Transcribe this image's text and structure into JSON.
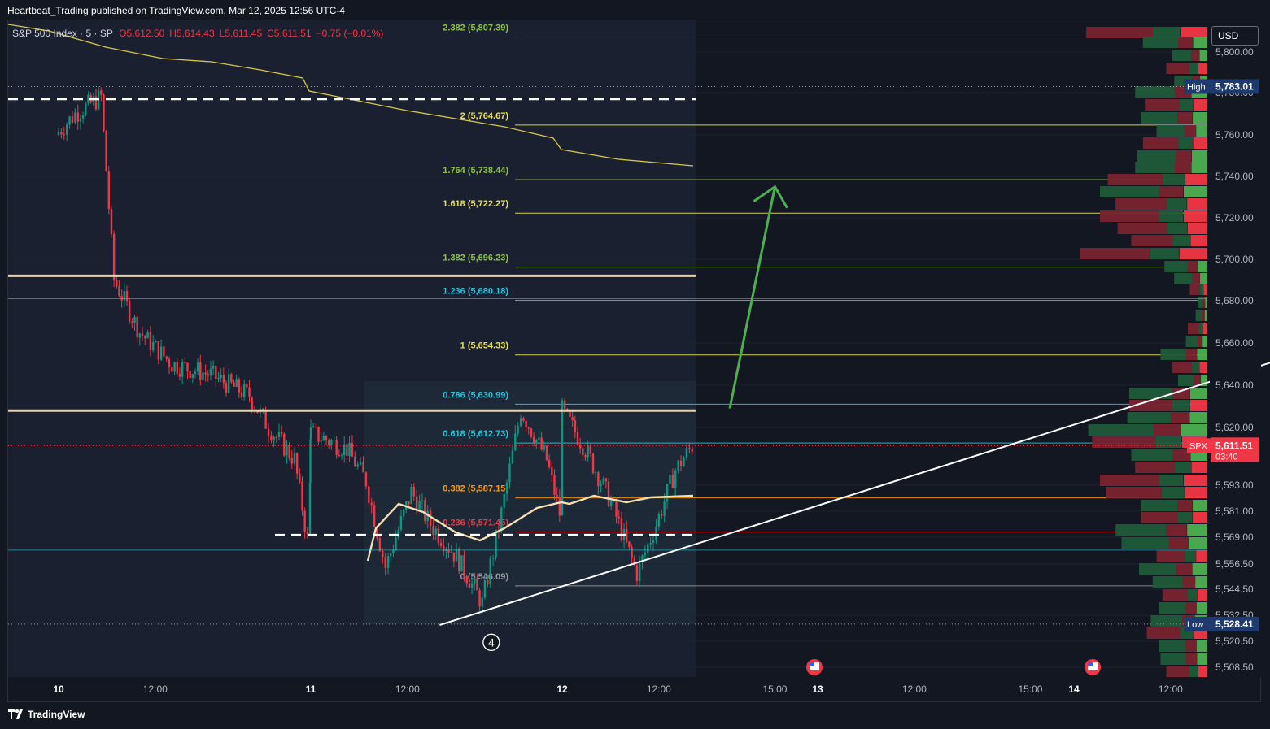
{
  "header": {
    "published_text": "Heartbeat_Trading published on TradingView.com, Mar 12, 2025 12:56 UTC-4"
  },
  "legend": {
    "symbol": "S&P 500 Index · 5 · SP",
    "open": "O5,612.50",
    "high": "H5,614.43",
    "low": "L5,611.45",
    "close": "C5,611.51",
    "change": "−0.75 (−0.01%)"
  },
  "currency_button": "USD",
  "footer": {
    "brand": "TradingView",
    "logo_icon": "tradingview-logo-icon"
  },
  "colors": {
    "background": "#131722",
    "up": "#089981",
    "down": "#f23645",
    "fib_yellow": "#e8e44a",
    "fib_green": "#8bc34a",
    "fib_cyan": "#26c6da",
    "fib_orange": "#ff9800",
    "trend": "#ffffff",
    "arrow": "#4caf50",
    "sr_band": "#f5e6c8",
    "vwap": "#f5deb3",
    "ema": "#d6c54c"
  },
  "chart_data": {
    "type": "candlestick",
    "symbol": "S&P 500 Index",
    "interval": "5",
    "last_price": "5,611.51",
    "last_price_time": "03:40",
    "last_price_tag": "SPX",
    "high_label": "High",
    "high_value": "5,783.01",
    "low_label": "Low",
    "low_value": "5,528.41",
    "ylim": [
      5500,
      5825
    ],
    "y_ticks": [
      "5,800.00",
      "5,780.00",
      "5,760.00",
      "5,740.00",
      "5,720.00",
      "5,700.00",
      "5,680.00",
      "5,660.00",
      "5,640.00",
      "5,620.00",
      "5,593.00",
      "5,581.00",
      "5,569.00",
      "5,556.50",
      "5,544.50",
      "5,532.50",
      "5,520.50",
      "5,508.50"
    ],
    "y_tick_values": [
      5800,
      5780,
      5760,
      5740,
      5720,
      5700,
      5680,
      5660,
      5640,
      5620,
      5593,
      5581,
      5569,
      5556.5,
      5544.5,
      5532.5,
      5520.5,
      5508.5
    ],
    "x_ticks": [
      "10",
      "12:00",
      "11",
      "12:00",
      "12",
      "12:00",
      "15:00",
      "13",
      "12:00",
      "15:00",
      "14",
      "12:00"
    ],
    "x_tick_bold": [
      true,
      false,
      true,
      false,
      true,
      false,
      false,
      true,
      false,
      false,
      true,
      false
    ],
    "x_tick_times": [
      "2025-03-10 09:30",
      "2025-03-10 12:00",
      "2025-03-11 09:30",
      "2025-03-11 12:00",
      "2025-03-12 09:30",
      "2025-03-12 12:00",
      "2025-03-12 15:00",
      "2025-03-13 09:30",
      "2025-03-13 12:00",
      "2025-03-13 15:00",
      "2025-03-14 09:30",
      "2025-03-14 12:00"
    ],
    "fib_levels": [
      {
        "label": "2.382 (5,807.39)",
        "ratio": 2.382,
        "price": 5807.39,
        "color": "#8bc34a"
      },
      {
        "label": "2 (5,764.67)",
        "ratio": 2,
        "price": 5764.67,
        "color": "#e8e44a"
      },
      {
        "label": "1.764 (5,738.44)",
        "ratio": 1.764,
        "price": 5738.44,
        "color": "#8bc34a"
      },
      {
        "label": "1.618 (5,722.27)",
        "ratio": 1.618,
        "price": 5722.27,
        "color": "#e8e44a"
      },
      {
        "label": "1.382 (5,696.23)",
        "ratio": 1.382,
        "price": 5696.23,
        "color": "#8bc34a"
      },
      {
        "label": "1.236 (5,680.18)",
        "ratio": 1.236,
        "price": 5680.18,
        "color": "#26c6da"
      },
      {
        "label": "1 (5,654.33)",
        "ratio": 1,
        "price": 5654.33,
        "color": "#e8e44a"
      },
      {
        "label": "0.786 (5,630.99)",
        "ratio": 0.786,
        "price": 5630.99,
        "color": "#26c6da"
      },
      {
        "label": "0.618 (5,612.73)",
        "ratio": 0.618,
        "price": 5612.73,
        "color": "#26c6da"
      },
      {
        "label": "0.382 (5,587.15)",
        "ratio": 0.382,
        "price": 5587.15,
        "color": "#ff9800"
      },
      {
        "label": "0.236 (5,571.45)",
        "ratio": 0.236,
        "price": 5571.45,
        "color": "#f23645"
      },
      {
        "label": "0 (5,546.09)",
        "ratio": 0,
        "price": 5546.09,
        "color": "#9598a1"
      }
    ],
    "wave_label": "4",
    "resistance_levels": [
      5692,
      5628
    ],
    "support_dashed": [
      5777,
      5570
    ],
    "trendline": {
      "from_time": "2025-03-11 12:50",
      "from_price": 5528,
      "to_time": "2025-03-14 15:30",
      "to_price": 5656
    },
    "projection_arrow": {
      "from_time": "2025-03-12 13:50",
      "from_price": 5629,
      "to_time": "2025-03-12 15:00",
      "to_price": 5735
    },
    "candles_close_path": [
      {
        "t": "2025-03-10 09:30",
        "p": 5760
      },
      {
        "t": "2025-03-10 10:00",
        "p": 5770
      },
      {
        "t": "2025-03-10 10:40",
        "p": 5778
      },
      {
        "t": "2025-03-10 11:00",
        "p": 5690
      },
      {
        "t": "2025-03-10 11:40",
        "p": 5665
      },
      {
        "t": "2025-03-10 12:30",
        "p": 5650
      },
      {
        "t": "2025-03-10 13:30",
        "p": 5645
      },
      {
        "t": "2025-03-10 14:30",
        "p": 5635
      },
      {
        "t": "2025-03-10 15:00",
        "p": 5620
      },
      {
        "t": "2025-03-10 15:40",
        "p": 5605
      },
      {
        "t": "2025-03-10 16:00",
        "p": 5568
      },
      {
        "t": "2025-03-11 09:30",
        "p": 5618
      },
      {
        "t": "2025-03-11 10:30",
        "p": 5610
      },
      {
        "t": "2025-03-11 11:00",
        "p": 5595
      },
      {
        "t": "2025-03-11 11:30",
        "p": 5555
      },
      {
        "t": "2025-03-11 12:10",
        "p": 5590
      },
      {
        "t": "2025-03-11 12:40",
        "p": 5575
      },
      {
        "t": "2025-03-11 13:20",
        "p": 5560
      },
      {
        "t": "2025-03-11 14:00",
        "p": 5538
      },
      {
        "t": "2025-03-11 14:30",
        "p": 5580
      },
      {
        "t": "2025-03-11 15:00",
        "p": 5628
      },
      {
        "t": "2025-03-11 15:40",
        "p": 5605
      },
      {
        "t": "2025-03-11 16:00",
        "p": 5580
      },
      {
        "t": "2025-03-12 09:30",
        "p": 5630
      },
      {
        "t": "2025-03-12 10:10",
        "p": 5610
      },
      {
        "t": "2025-03-12 10:50",
        "p": 5585
      },
      {
        "t": "2025-03-12 11:30",
        "p": 5552
      },
      {
        "t": "2025-03-12 12:00",
        "p": 5575
      },
      {
        "t": "2025-03-12 12:30",
        "p": 5600
      },
      {
        "t": "2025-03-12 12:56",
        "p": 5611.51
      }
    ]
  }
}
